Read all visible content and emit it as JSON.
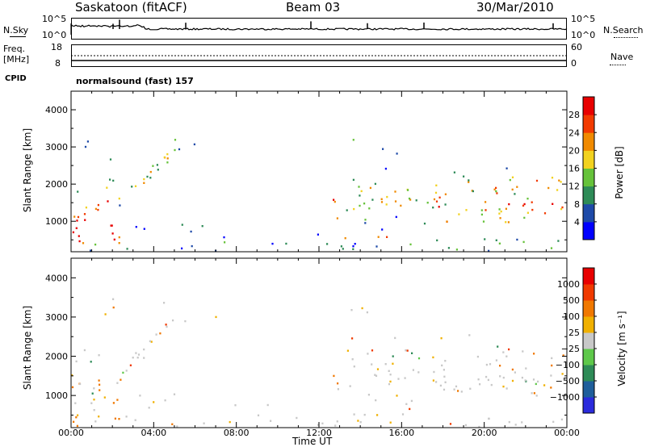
{
  "header": {
    "station": "Saskatoon (fitACF)",
    "beam": "Beam 03",
    "date": "30/Mar/2010"
  },
  "top_strip": {
    "nsky_label": "N.Sky",
    "nsky_ticks": [
      "10^5",
      "10^0"
    ],
    "nsearch_label": "N.Search",
    "nsearch_ticks": [
      "10^5",
      "10^0"
    ],
    "freq_label": "Freq.",
    "freq_unit": "[MHz]",
    "freq_ticks": [
      "18",
      "8"
    ],
    "nave_label": "Nave",
    "nave_ticks": [
      "60",
      "0"
    ],
    "cpid_label": "CPID",
    "cpid_value": "normalsound (fast) 157"
  },
  "chart_data": [
    {
      "type": "heatmap",
      "name": "power",
      "ylabel": "Slant Range [km]",
      "yticks": [
        "4000",
        "3000",
        "2000",
        "1000"
      ],
      "ylim": [
        180,
        4500
      ],
      "colorbar_label": "Power [dB]",
      "colorbar_ticks": [
        "28",
        "24",
        "20",
        "16",
        "12",
        "8",
        "4"
      ],
      "colorbar_colors": [
        "#0000ff",
        "#1e4aa8",
        "#2e8b57",
        "#66c23a",
        "#f2d21f",
        "#f08a00",
        "#f23a00",
        "#e80000"
      ]
    },
    {
      "type": "heatmap",
      "name": "velocity",
      "ylabel": "Slant Range [km]",
      "yticks": [
        "4000",
        "3000",
        "2000",
        "1000"
      ],
      "ylim": [
        180,
        4500
      ],
      "colorbar_label": "Velocity [m s⁻¹]",
      "colorbar_ticks": [
        "1000",
        "500",
        "100",
        "25",
        "−25",
        "−100",
        "−500",
        "−1000"
      ],
      "colorbar_colors": [
        "#2b2bdc",
        "#1f5e9b",
        "#2e8b57",
        "#5ec84a",
        "#c8c8c8",
        "#f0b000",
        "#f07800",
        "#f03a00",
        "#e80000"
      ],
      "xlabel": "Time UT",
      "xticks": [
        "00:00",
        "04:00",
        "08:00",
        "12:00",
        "16:00",
        "20:00",
        "00:00"
      ]
    }
  ]
}
